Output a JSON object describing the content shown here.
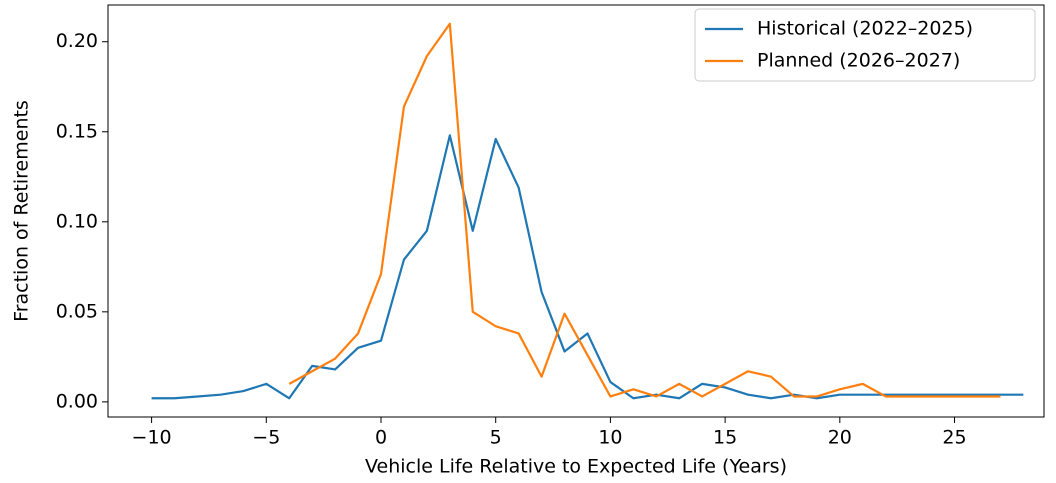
{
  "chart_data": {
    "type": "line",
    "x_label": "Vehicle Life Relative to Expected Life (Years)",
    "y_label": "Fraction of Retirements",
    "xlim": [
      -11.9,
      28.9
    ],
    "ylim": [
      -0.0084,
      0.2204
    ],
    "xticks": [
      {
        "value": -10,
        "label": "−10"
      },
      {
        "value": -5,
        "label": "−5"
      },
      0,
      5,
      10,
      15,
      20,
      25
    ],
    "yticks": [
      {
        "value": 0,
        "label": "0.00"
      },
      {
        "value": 0.05,
        "label": "0.05"
      },
      {
        "value": 0.1,
        "label": "0.10"
      },
      {
        "value": 0.15,
        "label": "0.15"
      },
      {
        "value": 0.2,
        "label": "0.20"
      }
    ],
    "legend": "upper right",
    "series": [
      {
        "name": "Historical (2022–2025)",
        "color": "#1f77b4",
        "x": [
          -10,
          -9,
          -8,
          -7,
          -6,
          -5,
          -4,
          -3,
          -2,
          -1,
          0,
          1,
          2,
          3,
          4,
          5,
          6,
          7,
          8,
          9,
          10,
          11,
          12,
          13,
          14,
          15,
          16,
          17,
          18,
          19,
          20,
          21,
          22,
          23,
          24,
          25,
          26,
          27,
          28
        ],
        "values": [
          0.002,
          0.002,
          0.003,
          0.004,
          0.006,
          0.01,
          0.002,
          0.02,
          0.018,
          0.03,
          0.034,
          0.079,
          0.095,
          0.148,
          0.095,
          0.146,
          0.119,
          0.061,
          0.028,
          0.038,
          0.011,
          0.002,
          0.004,
          0.002,
          0.01,
          0.008,
          0.004,
          0.002,
          0.004,
          0.002,
          0.004,
          0.004,
          0.004,
          0.004,
          0.004,
          0.004,
          0.004,
          0.004,
          0.004
        ]
      },
      {
        "name": "Planned (2026–2027)",
        "color": "#ff7f0e",
        "x": [
          -4,
          -3,
          -2,
          -1,
          0,
          1,
          2,
          3,
          4,
          5,
          6,
          7,
          8,
          9,
          10,
          11,
          12,
          13,
          14,
          15,
          16,
          17,
          18,
          19,
          20,
          21,
          22,
          23,
          24,
          25,
          26,
          27
        ],
        "values": [
          0.01,
          0.017,
          0.024,
          0.038,
          0.071,
          0.164,
          0.192,
          0.21,
          0.05,
          0.042,
          0.038,
          0.014,
          0.049,
          0.026,
          0.003,
          0.007,
          0.003,
          0.01,
          0.003,
          0.01,
          0.017,
          0.014,
          0.003,
          0.003,
          0.007,
          0.01,
          0.003,
          0.003,
          0.003,
          0.003,
          0.003,
          0.003
        ]
      }
    ]
  }
}
